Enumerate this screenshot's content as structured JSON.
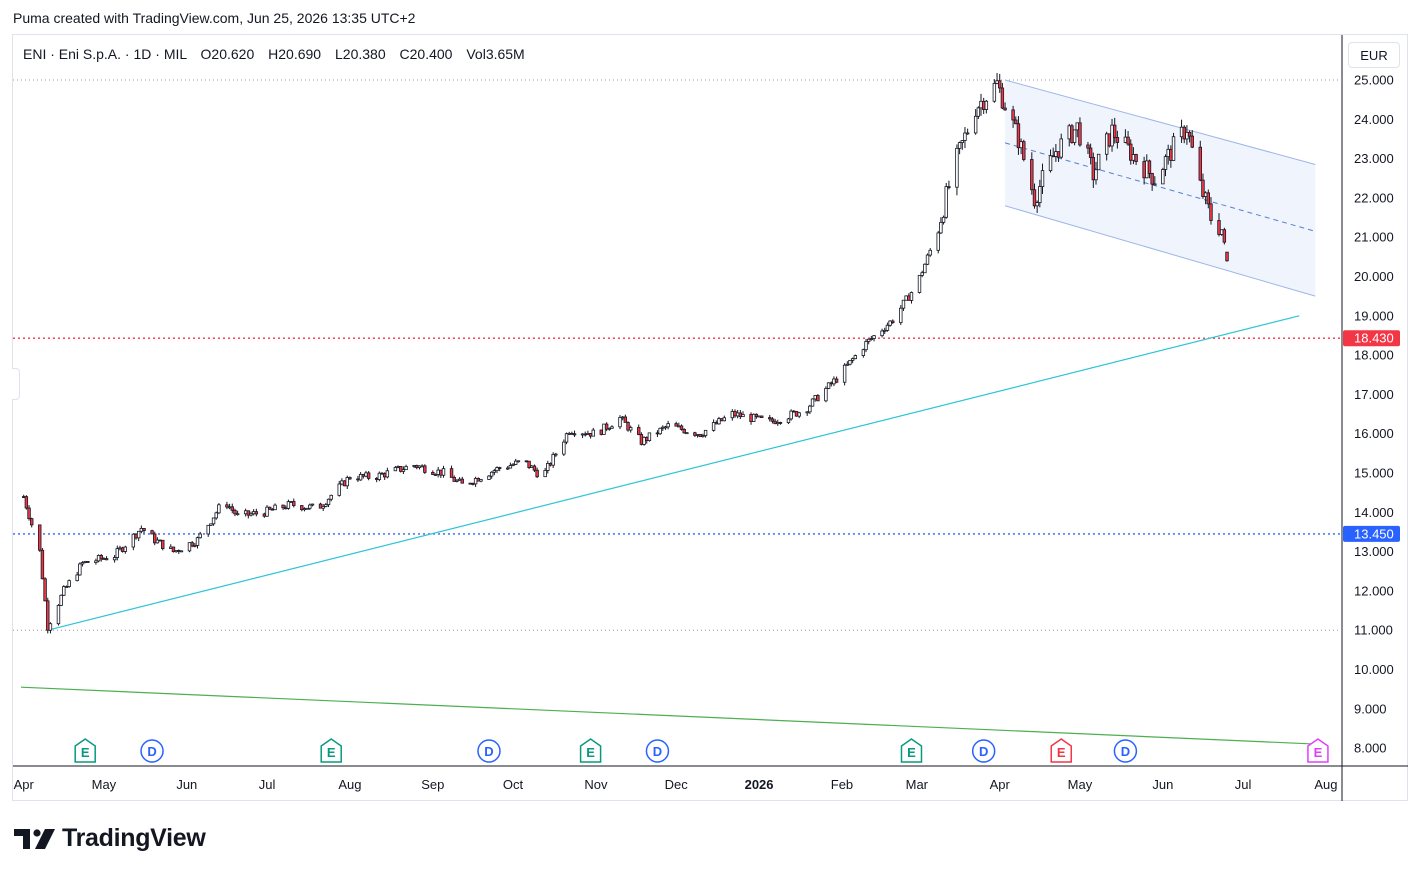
{
  "header": {
    "title": "Puma created with TradingView.com, Jun 25, 2026 13:35 UTC+2"
  },
  "legend": {
    "symbol": "ENI · Eni S.p.A. · 1D · MIL",
    "open_label": "O",
    "open": "20.620",
    "high_label": "H",
    "high": "20.690",
    "low_label": "L",
    "low": "20.380",
    "close_label": "C",
    "close": "20.400",
    "vol_label": "Vol",
    "vol": "3.65M"
  },
  "currency": "EUR",
  "brand": "TradingView",
  "colors": {
    "up": "#089981",
    "down": "#f23645",
    "candle_body_up": "#ffffff",
    "candle_outline": "#131722",
    "trendline": "#2ec4d6",
    "longline": "#4caf50",
    "channel_fill": "#eef3fd",
    "channel_border": "#9db6e8",
    "resistance": "#f23645",
    "support": "#2962ff"
  },
  "chart_data": {
    "type": "candlestick",
    "title": "",
    "xlabel": "",
    "ylabel": "",
    "y_axis": {
      "min": 7.5,
      "max": 25.2,
      "ticks": [
        "25.000",
        "24.000",
        "23.000",
        "22.000",
        "21.000",
        "20.000",
        "19.000",
        "18.000",
        "17.000",
        "16.000",
        "15.000",
        "14.000",
        "13.000",
        "12.000",
        "11.000",
        "10.000",
        "9.000",
        "8.000"
      ]
    },
    "x_axis": {
      "labels": [
        "Apr",
        "May",
        "Jun",
        "Jul",
        "Aug",
        "Sep",
        "Oct",
        "Nov",
        "Dec",
        "2026",
        "Feb",
        "Mar",
        "Apr",
        "May",
        "Jun",
        "Jul",
        "Aug"
      ]
    },
    "price_path": [
      [
        "2025-04-01",
        14.4
      ],
      [
        "2025-04-07",
        13.0
      ],
      [
        "2025-04-10",
        11.1
      ],
      [
        "2025-04-16",
        12.0
      ],
      [
        "2025-04-23",
        12.7
      ],
      [
        "2025-05-05",
        12.9
      ],
      [
        "2025-05-15",
        13.6
      ],
      [
        "2025-05-20",
        13.3
      ],
      [
        "2025-05-27",
        13.0
      ],
      [
        "2025-06-05",
        13.3
      ],
      [
        "2025-06-15",
        14.3
      ],
      [
        "2025-06-20",
        13.9
      ],
      [
        "2025-06-30",
        14.0
      ],
      [
        "2025-07-10",
        14.2
      ],
      [
        "2025-07-20",
        14.1
      ],
      [
        "2025-08-01",
        14.9
      ],
      [
        "2025-08-10",
        14.9
      ],
      [
        "2025-08-25",
        15.2
      ],
      [
        "2025-09-05",
        15.0
      ],
      [
        "2025-09-12",
        14.7
      ],
      [
        "2025-09-25",
        15.1
      ],
      [
        "2025-10-05",
        15.3
      ],
      [
        "2025-10-12",
        14.9
      ],
      [
        "2025-10-22",
        16.1
      ],
      [
        "2025-11-01",
        16.0
      ],
      [
        "2025-11-10",
        16.4
      ],
      [
        "2025-11-18",
        15.8
      ],
      [
        "2025-11-28",
        16.2
      ],
      [
        "2025-12-10",
        16.0
      ],
      [
        "2025-12-22",
        16.5
      ],
      [
        "2026-01-05",
        16.3
      ],
      [
        "2026-01-18",
        16.6
      ],
      [
        "2026-01-30",
        17.4
      ],
      [
        "2026-02-10",
        18.3
      ],
      [
        "2026-02-20",
        18.9
      ],
      [
        "2026-03-01",
        19.8
      ],
      [
        "2026-03-08",
        21.0
      ],
      [
        "2026-03-15",
        22.8
      ],
      [
        "2026-03-23",
        24.3
      ],
      [
        "2026-03-31",
        24.9
      ],
      [
        "2026-04-08",
        23.5
      ],
      [
        "2026-04-14",
        22.0
      ],
      [
        "2026-04-22",
        23.2
      ],
      [
        "2026-04-30",
        23.8
      ],
      [
        "2026-05-06",
        22.6
      ],
      [
        "2026-05-13",
        23.7
      ],
      [
        "2026-05-22",
        23.0
      ],
      [
        "2026-05-29",
        22.5
      ],
      [
        "2026-06-06",
        23.4
      ],
      [
        "2026-06-10",
        23.8
      ],
      [
        "2026-06-15",
        22.3
      ],
      [
        "2026-06-19",
        21.5
      ],
      [
        "2026-06-23",
        21.2
      ],
      [
        "2026-06-25",
        20.4
      ]
    ],
    "ohlc_last": {
      "open": 20.62,
      "high": 20.69,
      "low": 20.38,
      "close": 20.4
    },
    "horizontal_levels": [
      {
        "value": 18.43,
        "label": "18.430",
        "color": "#f23645",
        "style": "dotted"
      },
      {
        "value": 13.45,
        "label": "13.450",
        "color": "#2962ff",
        "style": "dotted"
      },
      {
        "value": 25.0,
        "color": "#9598a1",
        "style": "dotted"
      },
      {
        "value": 11.0,
        "color": "#9598a1",
        "style": "dotted"
      }
    ],
    "trendlines": [
      {
        "name": "uptrend",
        "from": [
          "2025-04-10",
          11.0
        ],
        "to": [
          "2026-07-22",
          19.0
        ],
        "color": "#2ec4d6"
      },
      {
        "name": "long-term",
        "from": [
          "2025-03-31",
          9.55
        ],
        "to": [
          "2026-07-29",
          8.1
        ],
        "color": "#4caf50"
      }
    ],
    "channel": {
      "upper": {
        "from": [
          "2026-04-03",
          25.0
        ],
        "to": [
          "2026-07-28",
          22.85
        ]
      },
      "middle": {
        "from": [
          "2026-04-03",
          23.4
        ],
        "to": [
          "2026-07-28",
          21.15
        ]
      },
      "lower": {
        "from": [
          "2026-04-03",
          21.8
        ],
        "to": [
          "2026-07-28",
          19.5
        ]
      }
    },
    "events": [
      {
        "letter": "E",
        "date": "2025-04-24",
        "color": "#089981"
      },
      {
        "letter": "D",
        "date": "2025-05-19",
        "color": "#2962ff"
      },
      {
        "letter": "E",
        "date": "2025-07-25",
        "color": "#089981"
      },
      {
        "letter": "D",
        "date": "2025-09-22",
        "color": "#2962ff"
      },
      {
        "letter": "E",
        "date": "2025-10-30",
        "color": "#089981"
      },
      {
        "letter": "D",
        "date": "2025-11-24",
        "color": "#2962ff"
      },
      {
        "letter": "E",
        "date": "2026-02-27",
        "color": "#089981"
      },
      {
        "letter": "D",
        "date": "2026-03-26",
        "color": "#2962ff"
      },
      {
        "letter": "E",
        "date": "2026-04-24",
        "color": "#f23645"
      },
      {
        "letter": "D",
        "date": "2026-05-18",
        "color": "#2962ff"
      },
      {
        "letter": "E",
        "date": "2026-07-29",
        "color": "#e040fb"
      }
    ]
  }
}
